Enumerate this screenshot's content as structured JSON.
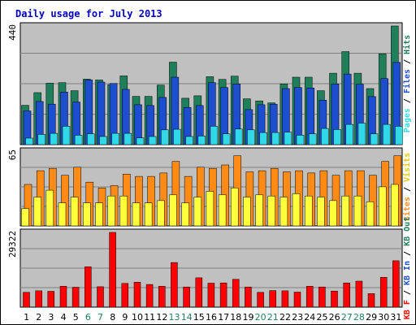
{
  "chart_data": {
    "type": "bar",
    "title": "Daily usage for July 2013",
    "categories": [
      "1",
      "2",
      "3",
      "4",
      "5",
      "6",
      "7",
      "8",
      "9",
      "10",
      "11",
      "12",
      "13",
      "14",
      "15",
      "16",
      "17",
      "18",
      "19",
      "20",
      "21",
      "22",
      "23",
      "24",
      "25",
      "26",
      "27",
      "28",
      "29",
      "30",
      "31"
    ],
    "weekend_days": [
      "6",
      "7",
      "13",
      "14",
      "20",
      "21",
      "27",
      "28"
    ],
    "grid": true,
    "panels": [
      {
        "id": "hits",
        "ymax_label": "440",
        "ylim": [
          0,
          440
        ],
        "series": [
          {
            "name": "Hits",
            "color": "#1f7f5a",
            "values": [
              146,
              193,
              228,
              230,
              200,
              243,
              240,
              222,
              255,
              179,
              179,
              221,
              306,
              172,
              181,
              252,
              242,
              254,
              170,
              162,
              155,
              225,
              250,
              250,
              200,
              265,
              345,
              265,
              208,
              337,
              440
            ]
          },
          {
            "name": "Files",
            "color": "#1e4ed0",
            "values": [
              125,
              160,
              150,
              195,
              158,
              240,
              232,
              227,
              205,
              148,
              145,
              175,
              250,
              138,
              145,
              230,
              212,
              225,
              130,
              148,
              150,
              208,
              212,
              210,
              165,
              225,
              262,
              224,
              178,
              245,
              305
            ]
          },
          {
            "name": "Pages",
            "color": "#30d8e8",
            "values": [
              24,
              38,
              42,
              68,
              35,
              40,
              30,
              42,
              42,
              25,
              30,
              55,
              57,
              30,
              32,
              68,
              40,
              58,
              55,
              45,
              45,
              46,
              35,
              40,
              60,
              56,
              75,
              80,
              40,
              75,
              68
            ]
          }
        ]
      },
      {
        "id": "visits",
        "ymax_label": "65",
        "ylim": [
          0,
          65
        ],
        "series": [
          {
            "name": "Sites",
            "color": "#ff8a16",
            "values": [
              36,
              48,
              50,
              44,
              51,
              38,
              33,
              35,
              45,
              43,
              43,
              46,
              56,
              43,
              51,
              50,
              53,
              61,
              47,
              48,
              50,
              47,
              48,
              46,
              48,
              44,
              48,
              48,
              44,
              56,
              61
            ]
          },
          {
            "name": "Visits",
            "color": "#ffff3b",
            "values": [
              15,
              25,
              31,
              20,
              25,
              20,
              20,
              26,
              26,
              20,
              20,
              22,
              27,
              20,
              25,
              30,
              27,
              33,
              25,
              27,
              26,
              25,
              28,
              26,
              25,
              22,
              26,
              26,
              21,
              34,
              36
            ]
          }
        ]
      },
      {
        "id": "kbytes",
        "ymax_label": "29322",
        "ylim": [
          0,
          29322
        ],
        "series": [
          {
            "name": "KB F",
            "color": "#ff0000",
            "values": [
              5800,
              6400,
              6200,
              8200,
              7800,
              15800,
              8000,
              29322,
              9300,
              9800,
              8900,
              8200,
              17500,
              7900,
              11500,
              9400,
              9500,
              10900,
              7900,
              5800,
              6500,
              6400,
              5900,
              8200,
              7900,
              6300,
              9500,
              10200,
              5300,
              11700,
              18200
            ]
          },
          {
            "name": "KB In",
            "color": "#1e4ed0",
            "values": []
          },
          {
            "name": "KB Out",
            "color": "#1f7f5a",
            "values": []
          }
        ]
      }
    ],
    "right_legends": [
      [
        {
          "text": "Pages",
          "color": "#30d8e8"
        },
        {
          "text": " / ",
          "color": "#000000"
        },
        {
          "text": "Files",
          "color": "#1e4ed0"
        },
        {
          "text": " / ",
          "color": "#000000"
        },
        {
          "text": "Hits",
          "color": "#1f7f5a"
        }
      ],
      [
        {
          "text": "Sites",
          "color": "#ff8a16"
        },
        {
          "text": " / ",
          "color": "#000000"
        },
        {
          "text": "Visits",
          "color": "#e6c800"
        }
      ],
      [
        {
          "text": "KB F",
          "color": "#ff0000"
        },
        {
          "text": " / ",
          "color": "#000000"
        },
        {
          "text": "KB In",
          "color": "#1e4ed0"
        },
        {
          "text": " / ",
          "color": "#000000"
        },
        {
          "text": "KB Out",
          "color": "#1f7f5a"
        }
      ]
    ]
  }
}
